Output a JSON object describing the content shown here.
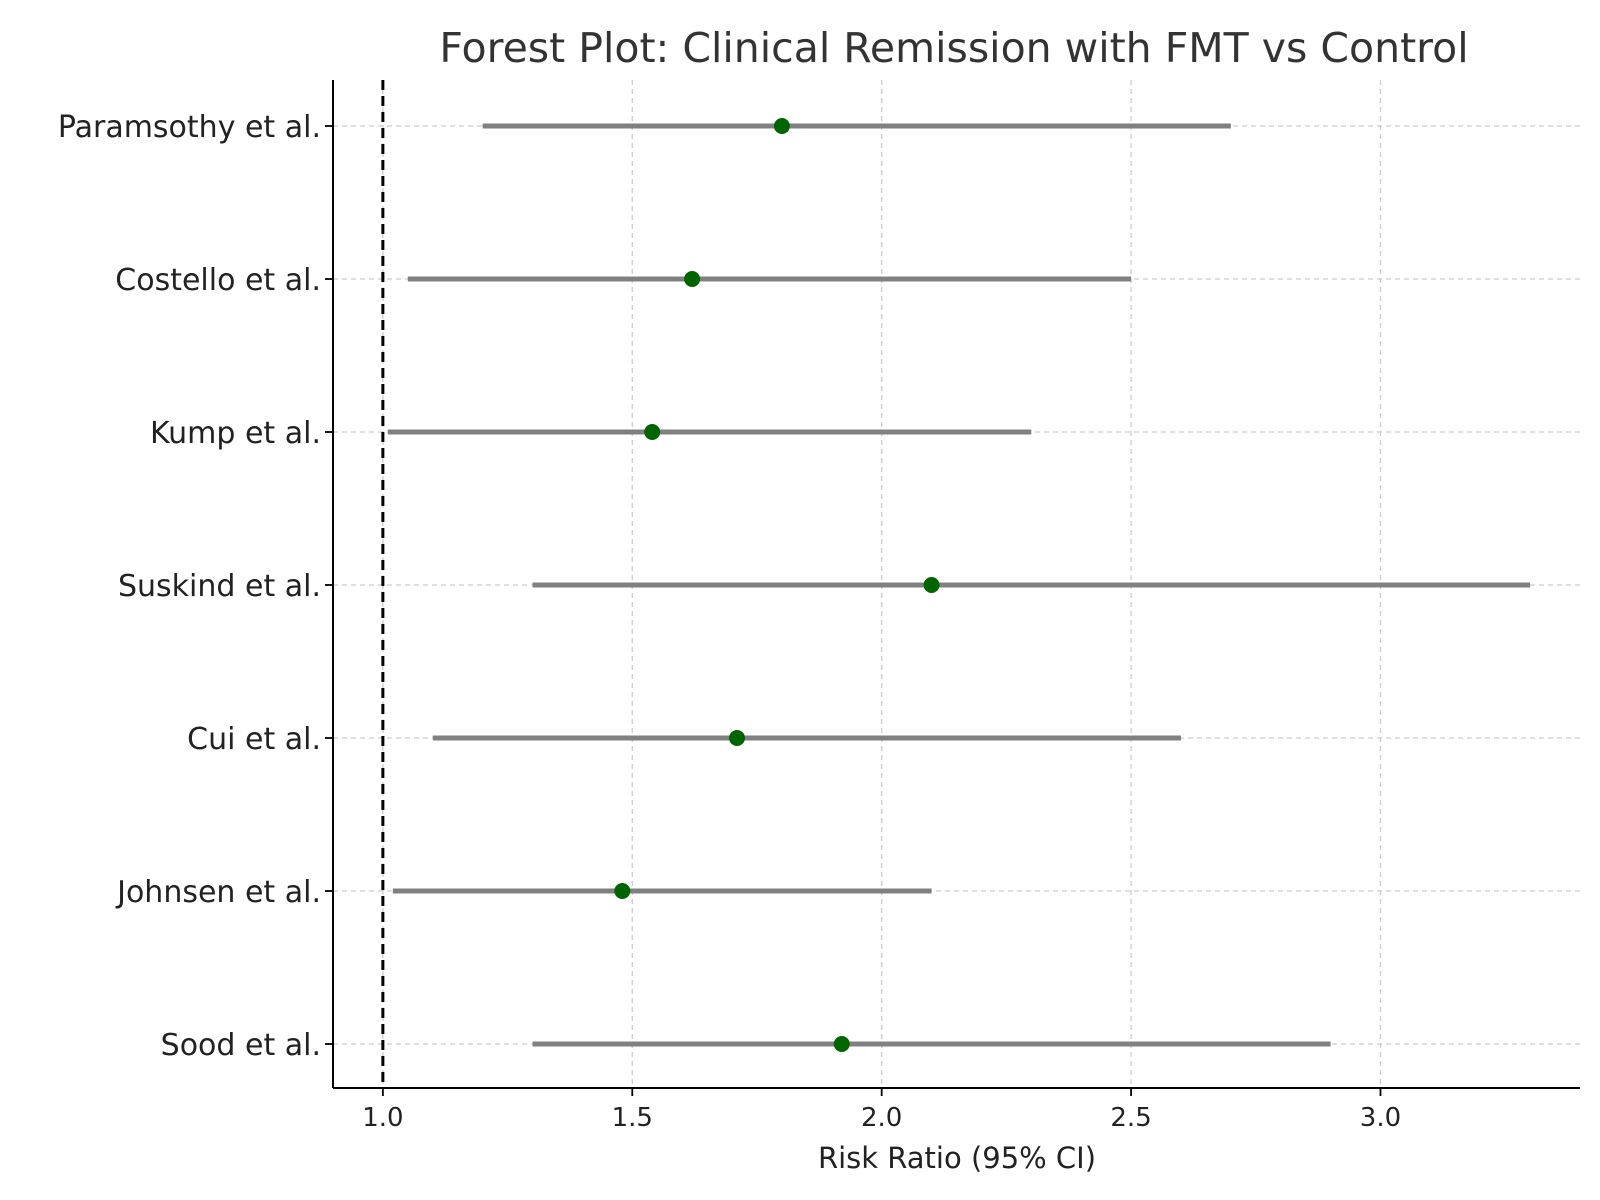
{
  "chart_data": {
    "type": "scatter",
    "subtype": "forest",
    "title": "Forest Plot: Clinical Remission with FMT vs Control",
    "xlabel": "Risk Ratio (95% CI)",
    "ylabel": "",
    "xlim": [
      0.9,
      3.4
    ],
    "xticks": [
      1.0,
      1.5,
      2.0,
      2.5,
      3.0
    ],
    "xtick_labels": [
      "1.0",
      "1.5",
      "2.0",
      "2.5",
      "3.0"
    ],
    "reference_line": 1.0,
    "grid": true,
    "legend": "none",
    "colors": {
      "point": "#006400",
      "ci": "#808080",
      "reference": "#000000"
    },
    "studies": [
      {
        "label": "Paramsothy et al.",
        "rr": 1.8,
        "lower": 1.2,
        "upper": 2.7
      },
      {
        "label": "Costello et al.",
        "rr": 1.62,
        "lower": 1.05,
        "upper": 2.5
      },
      {
        "label": "Kump et al.",
        "rr": 1.54,
        "lower": 1.01,
        "upper": 2.3
      },
      {
        "label": "Suskind et al.",
        "rr": 2.1,
        "lower": 1.3,
        "upper": 3.3
      },
      {
        "label": "Cui et al.",
        "rr": 1.71,
        "lower": 1.1,
        "upper": 2.6
      },
      {
        "label": "Johnsen et al.",
        "rr": 1.48,
        "lower": 1.02,
        "upper": 2.1
      },
      {
        "label": "Sood et al.",
        "rr": 1.92,
        "lower": 1.3,
        "upper": 2.9
      }
    ]
  }
}
